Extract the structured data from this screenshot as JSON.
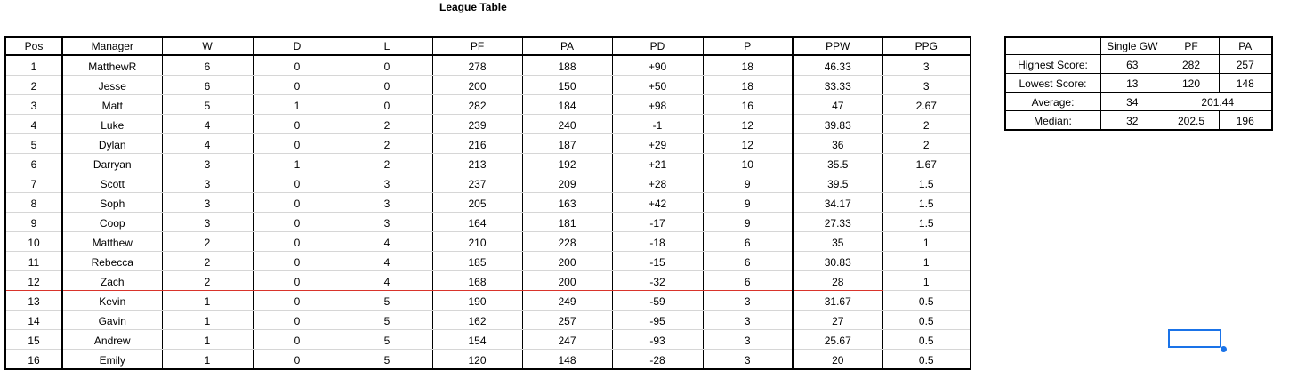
{
  "title": "League Table",
  "league": {
    "headers": [
      "Pos",
      "Manager",
      "W",
      "D",
      "L",
      "PF",
      "PA",
      "PD",
      "P",
      "PPW",
      "PPG"
    ],
    "rows": [
      [
        "1",
        "MatthewR",
        "6",
        "0",
        "0",
        "278",
        "188",
        "+90",
        "18",
        "46.33",
        "3"
      ],
      [
        "2",
        "Jesse",
        "6",
        "0",
        "0",
        "200",
        "150",
        "+50",
        "18",
        "33.33",
        "3"
      ],
      [
        "3",
        "Matt",
        "5",
        "1",
        "0",
        "282",
        "184",
        "+98",
        "16",
        "47",
        "2.67"
      ],
      [
        "4",
        "Luke",
        "4",
        "0",
        "2",
        "239",
        "240",
        "-1",
        "12",
        "39.83",
        "2"
      ],
      [
        "5",
        "Dylan",
        "4",
        "0",
        "2",
        "216",
        "187",
        "+29",
        "12",
        "36",
        "2"
      ],
      [
        "6",
        "Darryan",
        "3",
        "1",
        "2",
        "213",
        "192",
        "+21",
        "10",
        "35.5",
        "1.67"
      ],
      [
        "7",
        "Scott",
        "3",
        "0",
        "3",
        "237",
        "209",
        "+28",
        "9",
        "39.5",
        "1.5"
      ],
      [
        "8",
        "Soph",
        "3",
        "0",
        "3",
        "205",
        "163",
        "+42",
        "9",
        "34.17",
        "1.5"
      ],
      [
        "9",
        "Coop",
        "3",
        "0",
        "3",
        "164",
        "181",
        "-17",
        "9",
        "27.33",
        "1.5"
      ],
      [
        "10",
        "Matthew",
        "2",
        "0",
        "4",
        "210",
        "228",
        "-18",
        "6",
        "35",
        "1"
      ],
      [
        "11",
        "Rebecca",
        "2",
        "0",
        "4",
        "185",
        "200",
        "-15",
        "6",
        "30.83",
        "1"
      ],
      [
        "12",
        "Zach",
        "2",
        "0",
        "4",
        "168",
        "200",
        "-32",
        "6",
        "28",
        "1"
      ],
      [
        "13",
        "Kevin",
        "1",
        "0",
        "5",
        "190",
        "249",
        "-59",
        "3",
        "31.67",
        "0.5"
      ],
      [
        "14",
        "Gavin",
        "1",
        "0",
        "5",
        "162",
        "257",
        "-95",
        "3",
        "27",
        "0.5"
      ],
      [
        "15",
        "Andrew",
        "1",
        "0",
        "5",
        "154",
        "247",
        "-93",
        "3",
        "25.67",
        "0.5"
      ],
      [
        "16",
        "Emily",
        "1",
        "0",
        "5",
        "120",
        "148",
        "-28",
        "3",
        "20",
        "0.5"
      ]
    ]
  },
  "stats": {
    "headers": [
      "",
      "Single GW",
      "PF",
      "PA"
    ],
    "highest": {
      "label": "Highest Score:",
      "gw": "63",
      "pf": "282",
      "pa": "257"
    },
    "lowest": {
      "label": "Lowest Score:",
      "gw": "13",
      "pf": "120",
      "pa": "148"
    },
    "average": {
      "label": "Average:",
      "gw": "34",
      "pfpa": "201.44"
    },
    "median": {
      "label": "Median:",
      "gw": "32",
      "pf": "202.5",
      "pa": "196"
    }
  },
  "colors": {
    "cutoff_line": "#d9342b",
    "selection": "#1a73e8"
  }
}
